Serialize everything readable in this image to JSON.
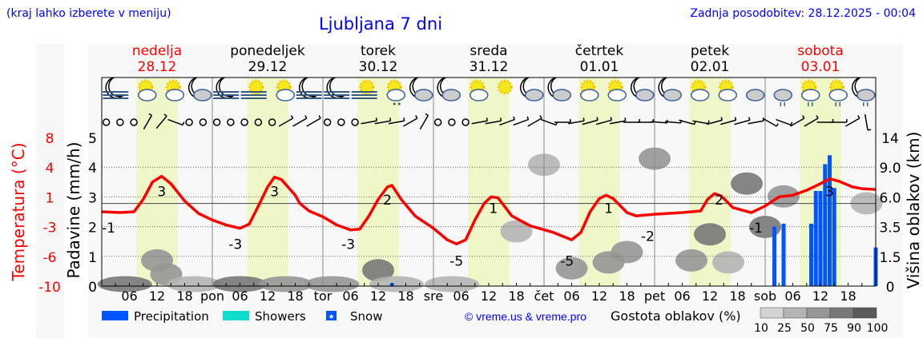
{
  "header": {
    "hint": "(kraj lahko izberete v meniju)",
    "title": "Ljubljana 7 dni",
    "updated": "Zadnja posodobitev: 28.12.2025 - 00:04"
  },
  "colors": {
    "link": "#0000ff",
    "temperature": "#ff0000",
    "precipitation": "#0055ff",
    "showers": "#11ddcc",
    "daylight": "#eff7c8",
    "weekend": "#ff0000"
  },
  "chart_data": {
    "type": "line",
    "days": [
      {
        "name": "nedelja",
        "date": "28.12",
        "weekend": true,
        "abbr": ""
      },
      {
        "name": "ponedeljek",
        "date": "29.12",
        "weekend": false,
        "abbr": "pon"
      },
      {
        "name": "torek",
        "date": "30.12",
        "weekend": false,
        "abbr": "tor"
      },
      {
        "name": "sreda",
        "date": "31.12",
        "weekend": false,
        "abbr": "sre"
      },
      {
        "name": "četrtek",
        "date": "01.01",
        "weekend": false,
        "abbr": "čet"
      },
      {
        "name": "petek",
        "date": "02.01",
        "weekend": false,
        "abbr": "pet"
      },
      {
        "name": "sobota",
        "date": "03.01",
        "weekend": true,
        "abbr": "sob"
      }
    ],
    "hour_ticks": [
      "06",
      "12",
      "18"
    ],
    "daylight_hours": [
      7.5,
      16.5
    ],
    "left_axis": {
      "label": "Padavine (mm/h)",
      "ticks": [
        "0",
        "1",
        "2",
        "3",
        "4",
        "5"
      ],
      "ylim": [
        0,
        5
      ]
    },
    "temp_axis": {
      "label": "Temperatura (°C)",
      "ticks": [
        "-10",
        "-6",
        "-3",
        "1",
        "4",
        "8"
      ],
      "ylim": [
        -10,
        8
      ]
    },
    "right_axis": {
      "label": "Višina oblakov (km)",
      "ticks": [
        "0",
        "1.5",
        "3.5",
        "6.0",
        "9.0",
        "14"
      ]
    },
    "temperature": [
      [
        0,
        -1
      ],
      [
        4,
        -1.1
      ],
      [
        7,
        -1
      ],
      [
        9,
        0.5
      ],
      [
        11,
        2.6
      ],
      [
        13,
        3.3
      ],
      [
        15,
        2.4
      ],
      [
        18,
        0.3
      ],
      [
        21,
        -1.2
      ],
      [
        24,
        -2
      ],
      [
        27,
        -2.6
      ],
      [
        30,
        -3
      ],
      [
        32,
        -2.5
      ],
      [
        34,
        -0.3
      ],
      [
        36,
        2
      ],
      [
        37.5,
        3.2
      ],
      [
        39,
        2.9
      ],
      [
        42,
        1
      ],
      [
        43,
        0
      ],
      [
        45,
        -0.9
      ],
      [
        48,
        -1.6
      ],
      [
        51,
        -2.6
      ],
      [
        54,
        -3.2
      ],
      [
        56,
        -3.1
      ],
      [
        58,
        -1.5
      ],
      [
        60,
        0.5
      ],
      [
        62,
        2
      ],
      [
        63,
        2.2
      ],
      [
        65,
        0.5
      ],
      [
        68,
        -1.5
      ],
      [
        72,
        -3
      ],
      [
        75,
        -4.4
      ],
      [
        77,
        -4.9
      ],
      [
        79,
        -4.4
      ],
      [
        81,
        -2
      ],
      [
        83,
        0
      ],
      [
        84.5,
        0.8
      ],
      [
        86,
        0.7
      ],
      [
        89,
        -1.5
      ],
      [
        93,
        -2.7
      ],
      [
        98,
        -3.5
      ],
      [
        102,
        -4.4
      ],
      [
        104,
        -3.5
      ],
      [
        106,
        -1
      ],
      [
        108,
        0.6
      ],
      [
        109.5,
        1
      ],
      [
        111,
        0.6
      ],
      [
        114,
        -1.1
      ],
      [
        116,
        -1.5
      ],
      [
        120,
        -1.3
      ],
      [
        126,
        -1.1
      ],
      [
        130,
        -0.9
      ],
      [
        131.5,
        0.5
      ],
      [
        133,
        1.2
      ],
      [
        134.5,
        0.9
      ],
      [
        137,
        -0.5
      ],
      [
        141,
        -1.1
      ],
      [
        144,
        -0.3
      ],
      [
        147,
        0.8
      ],
      [
        150,
        1
      ],
      [
        153,
        1.6
      ],
      [
        156,
        2.4
      ],
      [
        158,
        3
      ],
      [
        160,
        2.7
      ],
      [
        163,
        2
      ],
      [
        165,
        1.8
      ],
      [
        168,
        1.7
      ]
    ],
    "temperature_labels": [
      [
        1.5,
        -1,
        "-1"
      ],
      [
        13,
        3,
        "3"
      ],
      [
        29,
        -3,
        "-3"
      ],
      [
        37.5,
        3,
        "3"
      ],
      [
        53.5,
        -3,
        "-3"
      ],
      [
        62,
        2,
        "2"
      ],
      [
        77,
        -5,
        "-5"
      ],
      [
        85,
        1,
        "1"
      ],
      [
        101,
        -5,
        "-5"
      ],
      [
        110,
        1,
        "1"
      ],
      [
        118.5,
        -2,
        "-2"
      ],
      [
        134,
        2,
        "2"
      ],
      [
        142,
        -1,
        "-1"
      ],
      [
        158,
        3,
        "3"
      ]
    ],
    "precipitation": [
      [
        63,
        0.1
      ],
      [
        146,
        2.0
      ],
      [
        148,
        2.1
      ],
      [
        154,
        2.1
      ],
      [
        155,
        3.2
      ],
      [
        156,
        3.2
      ],
      [
        157,
        4.1
      ],
      [
        158,
        4.4
      ],
      [
        159,
        3.3
      ],
      [
        168,
        1.3
      ]
    ],
    "cloud_density": [
      [
        12,
        1.3,
        "h",
        70
      ],
      [
        14,
        0.6,
        "h",
        70
      ],
      [
        5,
        0.1,
        "h",
        85
      ],
      [
        20,
        0.1,
        "h",
        40
      ],
      [
        30,
        0.1,
        "h",
        80
      ],
      [
        40,
        0.1,
        "h",
        60
      ],
      [
        50,
        0.1,
        "h",
        70
      ],
      [
        60,
        0.8,
        "h",
        75
      ],
      [
        64,
        0.1,
        "h",
        40
      ],
      [
        76,
        0.1,
        "h",
        25
      ],
      [
        90,
        3.2,
        "h",
        35
      ],
      [
        96,
        9.5,
        "h",
        25
      ],
      [
        102,
        0.9,
        "h",
        60
      ],
      [
        110,
        1.2,
        "h",
        50
      ],
      [
        114,
        1.8,
        "h",
        55
      ],
      [
        120,
        10.5,
        "h",
        70
      ],
      [
        128,
        1.3,
        "h",
        50
      ],
      [
        132,
        3.0,
        "h",
        75
      ],
      [
        136,
        1.2,
        "h",
        45
      ],
      [
        140,
        7.4,
        "h",
        85
      ],
      [
        144,
        3.5,
        "h",
        80
      ],
      [
        148,
        6.1,
        "h",
        60
      ],
      [
        166,
        5.5,
        "h",
        25
      ]
    ],
    "cloud_legend": {
      "label": "Gostota oblakov (%)",
      "ticks": [
        "10",
        "25",
        "50",
        "75",
        "90",
        "100"
      ]
    }
  },
  "weather_icons": [
    "moon-fog",
    "sun-cloud",
    "sun-cloud",
    "moon-cloud",
    "moon-fog",
    "sun-fog",
    "sun-cloud",
    "moon-fog",
    "moon-fog",
    "sun-fog",
    "sun-snow",
    "moon-cloud",
    "moon-cloud",
    "sun-cloud",
    "sun",
    "moon-cloud",
    "moon-cloud",
    "sun-cloud",
    "sun-cloud",
    "moon-cloud",
    "moon-cloud",
    "sun-cloud",
    "sun-cloud",
    "cloud",
    "cloud-rain",
    "sun-rain",
    "sun-rain",
    "moon-rain"
  ],
  "wind": [
    "calm",
    "calm",
    "calm",
    30,
    40,
    110,
    "calm",
    "calm",
    "calm",
    "calm",
    "calm",
    "calm",
    "calm",
    60,
    60,
    60,
    "calm",
    "calm",
    "calm",
    80,
    80,
    80,
    60,
    30,
    "calm",
    "calm",
    "calm",
    80,
    80,
    70,
    70,
    60,
    110,
    90,
    80,
    75,
    75,
    80,
    90,
    90,
    95,
    95,
    105,
    100,
    75,
    75,
    75,
    80,
    120,
    110,
    60,
    60,
    90,
    90,
    60,
    170
  ],
  "legend": {
    "precipitation": "Precipitation",
    "showers": "Showers",
    "snow": "Snow",
    "copyright": "© vreme.us & vreme.pro"
  }
}
